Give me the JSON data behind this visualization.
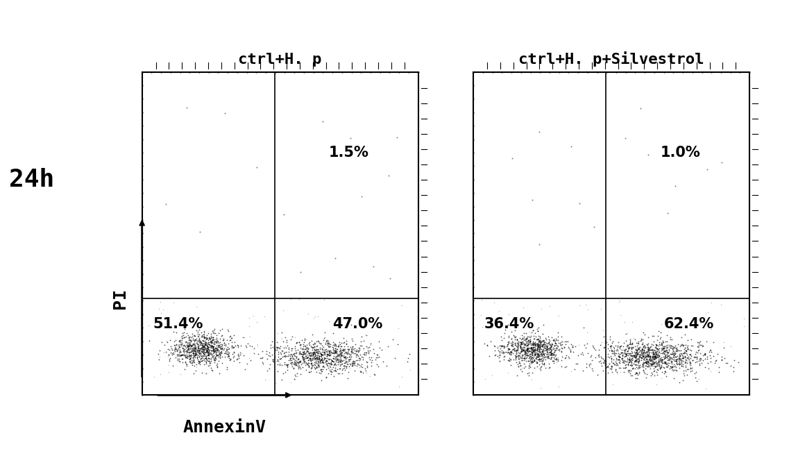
{
  "panel1_title": "ctrl+H. p",
  "panel2_title": "ctrl+H. p+Silvestrol",
  "row_label": "24h",
  "xlabel": "AnnexinV",
  "ylabel": "PI",
  "panel1_quadrants": {
    "top_left": "",
    "top_right": "1.5%",
    "bottom_left": "51.4%",
    "bottom_right": "47.0%"
  },
  "panel2_quadrants": {
    "top_left": "",
    "top_right": "1.0%",
    "bottom_left": "36.4%",
    "bottom_right": "62.4%"
  },
  "background_color": "#ffffff",
  "text_color": "#000000",
  "title_fontsize": 16,
  "label_fontsize": 18,
  "quadrant_fontsize": 15,
  "row_label_fontsize": 26
}
